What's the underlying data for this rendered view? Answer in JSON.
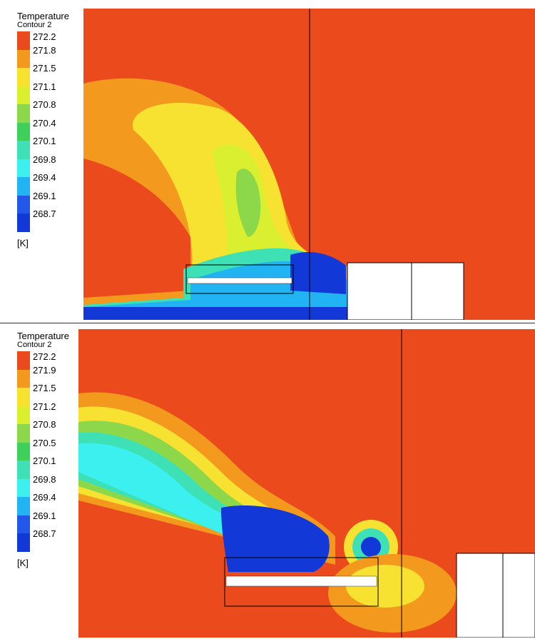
{
  "chart_data": [
    {
      "type": "heatmap",
      "legend": {
        "title": "Temperature",
        "subtitle": "Contour 2",
        "ticks": [
          "272.2",
          "271.8",
          "271.5",
          "271.1",
          "270.8",
          "270.4",
          "270.1",
          "269.8",
          "269.4",
          "269.1",
          "268.7"
        ],
        "colors": [
          "#ea4a1c",
          "#f39a1e",
          "#f7e231",
          "#d9ef2f",
          "#8cd84a",
          "#3fcf5b",
          "#3ee0b6",
          "#3cf0f0",
          "#22b3f2",
          "#2258ea",
          "#1238d8"
        ],
        "unit": "[K]"
      },
      "range": [
        268.7,
        272.2
      ]
    },
    {
      "type": "heatmap",
      "legend": {
        "title": "Temperature",
        "subtitle": "Contour 2",
        "ticks": [
          "272.2",
          "271.9",
          "271.5",
          "271.2",
          "270.8",
          "270.5",
          "270.1",
          "269.8",
          "269.4",
          "269.1",
          "268.7"
        ],
        "colors": [
          "#ea4a1c",
          "#f39a1e",
          "#f7e231",
          "#d9ef2f",
          "#8cd84a",
          "#3fcf5b",
          "#3ee0b6",
          "#3cf0f0",
          "#22b3f2",
          "#2258ea",
          "#1238d8"
        ],
        "unit": "[K]"
      },
      "range": [
        268.7,
        272.2
      ]
    }
  ]
}
